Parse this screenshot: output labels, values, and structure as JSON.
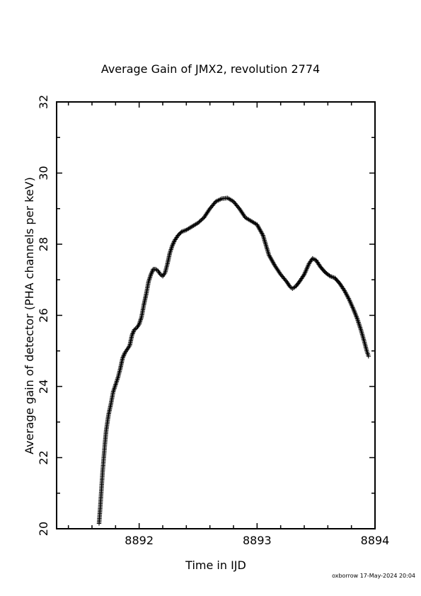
{
  "chart_data": {
    "type": "scatter",
    "title": "Average Gain of JMX2, revolution 2774",
    "xlabel": "Time in IJD",
    "ylabel": "Average gain of detector (PHA channels per keV)",
    "xlim": [
      8891.3,
      8894.0
    ],
    "ylim": [
      20,
      32
    ],
    "xticks": [
      8892,
      8893,
      8894
    ],
    "xtick_labels": [
      "8892",
      "8893",
      "8894"
    ],
    "yticks": [
      20,
      22,
      24,
      26,
      28,
      30,
      32
    ],
    "ytick_labels": [
      "20",
      "22",
      "24",
      "26",
      "28",
      "30",
      "32"
    ],
    "marker": "+",
    "grid": false,
    "legend": "none",
    "series": [
      {
        "points": [
          [
            8891.66,
            20.15
          ],
          [
            8891.67,
            20.6
          ],
          [
            8891.68,
            21.1
          ],
          [
            8891.69,
            21.6
          ],
          [
            8891.7,
            22.0
          ],
          [
            8891.71,
            22.4
          ],
          [
            8891.72,
            22.75
          ],
          [
            8891.74,
            23.2
          ],
          [
            8891.76,
            23.5
          ],
          [
            8891.78,
            23.85
          ],
          [
            8891.8,
            24.05
          ],
          [
            8891.82,
            24.25
          ],
          [
            8891.84,
            24.5
          ],
          [
            8891.86,
            24.8
          ],
          [
            8891.88,
            24.95
          ],
          [
            8891.9,
            25.05
          ],
          [
            8891.92,
            25.15
          ],
          [
            8891.94,
            25.45
          ],
          [
            8891.96,
            25.6
          ],
          [
            8891.98,
            25.65
          ],
          [
            8892.0,
            25.75
          ],
          [
            8892.02,
            25.95
          ],
          [
            8892.04,
            26.3
          ],
          [
            8892.06,
            26.6
          ],
          [
            8892.08,
            26.95
          ],
          [
            8892.1,
            27.15
          ],
          [
            8892.12,
            27.3
          ],
          [
            8892.14,
            27.3
          ],
          [
            8892.16,
            27.25
          ],
          [
            8892.18,
            27.15
          ],
          [
            8892.2,
            27.1
          ],
          [
            8892.22,
            27.2
          ],
          [
            8892.24,
            27.45
          ],
          [
            8892.26,
            27.75
          ],
          [
            8892.28,
            27.95
          ],
          [
            8892.3,
            28.1
          ],
          [
            8892.33,
            28.25
          ],
          [
            8892.36,
            28.35
          ],
          [
            8892.4,
            28.4
          ],
          [
            8892.45,
            28.5
          ],
          [
            8892.5,
            28.6
          ],
          [
            8892.55,
            28.75
          ],
          [
            8892.6,
            29.0
          ],
          [
            8892.65,
            29.2
          ],
          [
            8892.7,
            29.28
          ],
          [
            8892.75,
            29.3
          ],
          [
            8892.8,
            29.2
          ],
          [
            8892.85,
            29.0
          ],
          [
            8892.9,
            28.75
          ],
          [
            8892.95,
            28.65
          ],
          [
            8893.0,
            28.55
          ],
          [
            8893.05,
            28.25
          ],
          [
            8893.1,
            27.7
          ],
          [
            8893.15,
            27.4
          ],
          [
            8893.2,
            27.15
          ],
          [
            8893.25,
            26.95
          ],
          [
            8893.28,
            26.8
          ],
          [
            8893.3,
            26.75
          ],
          [
            8893.33,
            26.82
          ],
          [
            8893.36,
            26.95
          ],
          [
            8893.4,
            27.15
          ],
          [
            8893.44,
            27.45
          ],
          [
            8893.47,
            27.6
          ],
          [
            8893.5,
            27.55
          ],
          [
            8893.54,
            27.35
          ],
          [
            8893.58,
            27.2
          ],
          [
            8893.62,
            27.1
          ],
          [
            8893.66,
            27.05
          ],
          [
            8893.7,
            26.9
          ],
          [
            8893.74,
            26.7
          ],
          [
            8893.78,
            26.45
          ],
          [
            8893.82,
            26.15
          ],
          [
            8893.85,
            25.9
          ],
          [
            8893.88,
            25.6
          ],
          [
            8893.91,
            25.25
          ],
          [
            8893.93,
            25.0
          ],
          [
            8893.945,
            24.85
          ]
        ]
      }
    ],
    "footer_text": "oxborrow 17-May-2024 20:04"
  }
}
